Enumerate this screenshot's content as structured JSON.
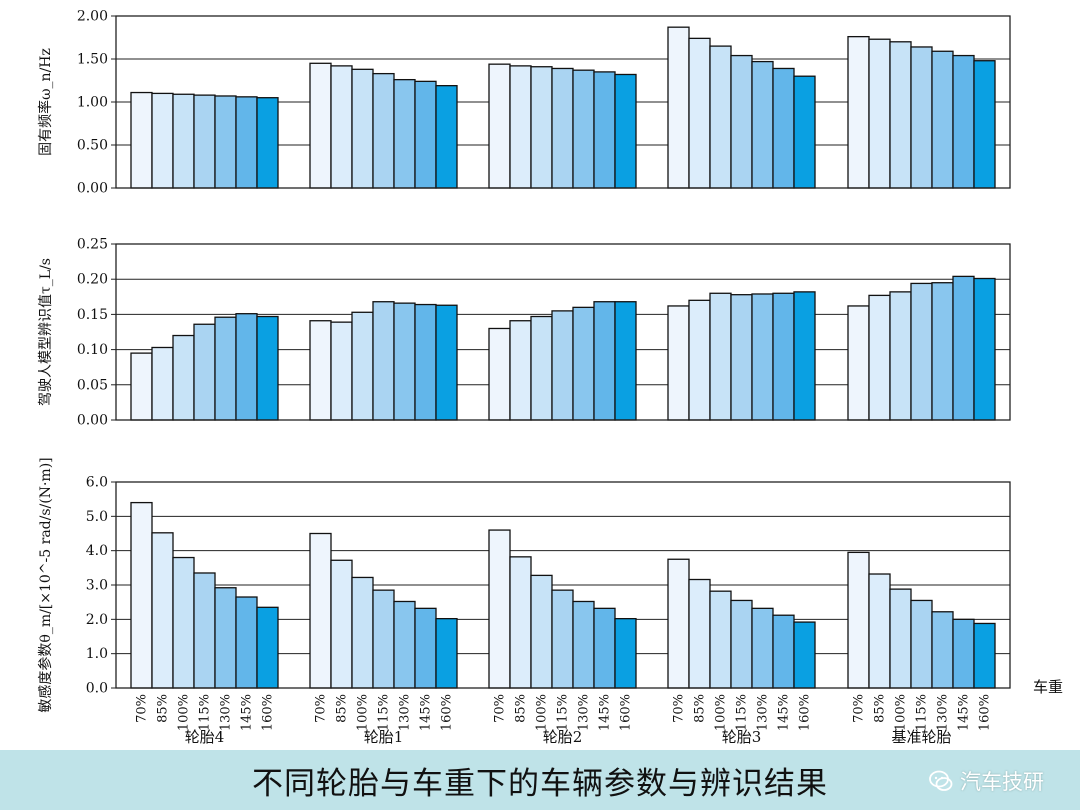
{
  "caption": "不同轮胎与车重下的车辆参数与辨识结果",
  "watermark": "汽车技研",
  "colors": [
    "#eef5fd",
    "#dcedfb",
    "#c7e3f7",
    "#aad4f2",
    "#89c6ee",
    "#62b6ea",
    "#0aa0e2"
  ],
  "chart_data": [
    {
      "type": "bar",
      "ylabel": "固有频率ω_n/Hz",
      "ylim": [
        0,
        2.0
      ],
      "yticks": [
        "0.00",
        "0.50",
        "1.00",
        "1.50",
        "2.00"
      ],
      "grid": true,
      "categories": [
        "轮胎4",
        "轮胎1",
        "轮胎2",
        "轮胎3",
        "基准轮胎"
      ],
      "series": [
        {
          "name": "70%",
          "values": [
            1.11,
            1.45,
            1.44,
            1.87,
            1.76
          ]
        },
        {
          "name": "85%",
          "values": [
            1.1,
            1.42,
            1.42,
            1.74,
            1.73
          ]
        },
        {
          "name": "100%",
          "values": [
            1.09,
            1.38,
            1.41,
            1.65,
            1.7
          ]
        },
        {
          "name": "115%",
          "values": [
            1.08,
            1.33,
            1.39,
            1.54,
            1.64
          ]
        },
        {
          "name": "130%",
          "values": [
            1.07,
            1.26,
            1.37,
            1.47,
            1.59
          ]
        },
        {
          "name": "145%",
          "values": [
            1.06,
            1.24,
            1.35,
            1.39,
            1.54
          ]
        },
        {
          "name": "160%",
          "values": [
            1.05,
            1.19,
            1.32,
            1.3,
            1.48
          ]
        }
      ]
    },
    {
      "type": "bar",
      "ylabel": "驾驶人模型辨识值τ_L/s",
      "ylim": [
        0,
        0.25
      ],
      "yticks": [
        "0.00",
        "0.05",
        "0.10",
        "0.15",
        "0.20",
        "0.25"
      ],
      "grid": true,
      "categories": [
        "轮胎4",
        "轮胎1",
        "轮胎2",
        "轮胎3",
        "基准轮胎"
      ],
      "series": [
        {
          "name": "70%",
          "values": [
            0.095,
            0.141,
            0.13,
            0.162,
            0.162
          ]
        },
        {
          "name": "85%",
          "values": [
            0.103,
            0.139,
            0.141,
            0.17,
            0.177
          ]
        },
        {
          "name": "100%",
          "values": [
            0.12,
            0.153,
            0.147,
            0.18,
            0.182
          ]
        },
        {
          "name": "115%",
          "values": [
            0.136,
            0.168,
            0.155,
            0.178,
            0.194
          ]
        },
        {
          "name": "130%",
          "values": [
            0.146,
            0.166,
            0.16,
            0.179,
            0.195
          ]
        },
        {
          "name": "145%",
          "values": [
            0.151,
            0.164,
            0.168,
            0.18,
            0.204
          ]
        },
        {
          "name": "160%",
          "values": [
            0.147,
            0.163,
            0.168,
            0.182,
            0.201
          ]
        }
      ]
    },
    {
      "type": "bar",
      "ylabel": "敏感度参数θ_m/[×10^-5 rad/s/(N·m)]",
      "ylim": [
        0,
        6.0
      ],
      "yticks": [
        "0.0",
        "1.0",
        "2.0",
        "3.0",
        "4.0",
        "5.0",
        "6.0"
      ],
      "grid": true,
      "xlabel": "车重",
      "tick_labels": [
        "70%",
        "85%",
        "100%",
        "115%",
        "130%",
        "145%",
        "160%"
      ],
      "categories": [
        "轮胎4",
        "轮胎1",
        "轮胎2",
        "轮胎3",
        "基准轮胎"
      ],
      "series": [
        {
          "name": "70%",
          "values": [
            5.4,
            4.5,
            4.6,
            3.75,
            3.95
          ]
        },
        {
          "name": "85%",
          "values": [
            4.52,
            3.72,
            3.82,
            3.16,
            3.32
          ]
        },
        {
          "name": "100%",
          "values": [
            3.8,
            3.22,
            3.28,
            2.82,
            2.88
          ]
        },
        {
          "name": "115%",
          "values": [
            3.35,
            2.85,
            2.85,
            2.55,
            2.55
          ]
        },
        {
          "name": "130%",
          "values": [
            2.92,
            2.52,
            2.52,
            2.32,
            2.22
          ]
        },
        {
          "name": "145%",
          "values": [
            2.65,
            2.32,
            2.32,
            2.12,
            2.0
          ]
        },
        {
          "name": "160%",
          "values": [
            2.35,
            2.02,
            2.02,
            1.92,
            1.88
          ]
        }
      ]
    }
  ]
}
